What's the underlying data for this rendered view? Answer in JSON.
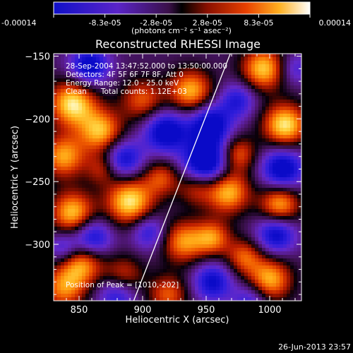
{
  "colorbar": {
    "ticks": [
      "-0.00014",
      "-8.3e-05",
      "-2.8e-05",
      "2.8e-05",
      "8.3e-05",
      "0.00014"
    ],
    "units": "(photons cm⁻² s⁻¹ asec⁻²)"
  },
  "chart_data": {
    "type": "heatmap",
    "title": "Reconstructed RHESSI Image",
    "xlabel": "Heliocentric X (arcsec)",
    "ylabel": "Heliocentric Y (arcsec)",
    "xlim": [
      830,
      1025
    ],
    "ylim": [
      -345,
      -148
    ],
    "xticks": [
      "850",
      "900",
      "950",
      "1000"
    ],
    "yticks": [
      "-150",
      "-200",
      "-250",
      "-300"
    ],
    "colormap_range": [
      -0.00014,
      0.00014
    ],
    "limb_line": {
      "x": [
        893,
        969
      ],
      "y": [
        -345,
        -148
      ]
    },
    "blobs": [
      {
        "x": 845,
        "y": -188,
        "v": 1.0,
        "r": 13
      },
      {
        "x": 867,
        "y": -210,
        "v": 0.85,
        "r": 12
      },
      {
        "x": 838,
        "y": -230,
        "v": 0.8,
        "r": 12
      },
      {
        "x": 845,
        "y": -275,
        "v": 0.9,
        "r": 12
      },
      {
        "x": 900,
        "y": -185,
        "v": 0.6,
        "r": 12
      },
      {
        "x": 938,
        "y": -178,
        "v": 0.85,
        "r": 12
      },
      {
        "x": 995,
        "y": -160,
        "v": 0.9,
        "r": 12
      },
      {
        "x": 1012,
        "y": -205,
        "v": 1.0,
        "r": 12
      },
      {
        "x": 975,
        "y": -228,
        "v": 0.65,
        "r": 10
      },
      {
        "x": 890,
        "y": -266,
        "v": 1.0,
        "r": 13
      },
      {
        "x": 915,
        "y": -247,
        "v": 0.55,
        "r": 10
      },
      {
        "x": 942,
        "y": -255,
        "v": 0.5,
        "r": 10
      },
      {
        "x": 967,
        "y": -258,
        "v": 0.9,
        "r": 12
      },
      {
        "x": 1008,
        "y": -268,
        "v": 0.85,
        "r": 11
      },
      {
        "x": 932,
        "y": -298,
        "v": 0.75,
        "r": 12
      },
      {
        "x": 955,
        "y": -295,
        "v": 0.7,
        "r": 10
      },
      {
        "x": 852,
        "y": -315,
        "v": 0.8,
        "r": 12
      },
      {
        "x": 838,
        "y": -335,
        "v": 0.7,
        "r": 12
      },
      {
        "x": 885,
        "y": -325,
        "v": 0.55,
        "r": 11
      },
      {
        "x": 1000,
        "y": -328,
        "v": 0.85,
        "r": 12
      },
      {
        "x": 980,
        "y": -310,
        "v": 0.6,
        "r": 10
      },
      {
        "x": 920,
        "y": -340,
        "v": 0.6,
        "r": 11
      },
      {
        "x": 868,
        "y": -240,
        "v": 0.45,
        "r": 9
      },
      {
        "x": 858,
        "y": -158,
        "v": -0.8,
        "r": 11
      },
      {
        "x": 918,
        "y": -210,
        "v": -0.85,
        "r": 12
      },
      {
        "x": 953,
        "y": -205,
        "v": -0.85,
        "r": 12
      },
      {
        "x": 950,
        "y": -235,
        "v": -1.0,
        "r": 13
      },
      {
        "x": 885,
        "y": -232,
        "v": -0.7,
        "r": 11
      },
      {
        "x": 860,
        "y": -295,
        "v": -0.75,
        "r": 11
      },
      {
        "x": 1010,
        "y": -240,
        "v": -0.85,
        "r": 12
      },
      {
        "x": 1005,
        "y": -292,
        "v": -0.75,
        "r": 11
      },
      {
        "x": 975,
        "y": -185,
        "v": -0.55,
        "r": 10
      },
      {
        "x": 880,
        "y": -340,
        "v": -0.6,
        "r": 11
      },
      {
        "x": 955,
        "y": -330,
        "v": -0.7,
        "r": 11
      },
      {
        "x": 838,
        "y": -303,
        "v": -0.5,
        "r": 9
      },
      {
        "x": 905,
        "y": -290,
        "v": -0.55,
        "r": 10
      },
      {
        "x": 985,
        "y": -345,
        "v": -0.5,
        "r": 10
      },
      {
        "x": 1020,
        "y": -160,
        "v": -0.4,
        "r": 9
      }
    ]
  },
  "annotations": [
    "28-Sep-2004 13:47:52.000 to 13:50:00.000",
    "Detectors: 4F 5F 6F 7F 8F, Att 0",
    "Energy Range: 12.0 - 25.0 keV",
    "Clean      Total counts: 1.12E+03"
  ],
  "peak_text": "Position of Peak = [1010,-202]",
  "footer_date": "26-Jun-2013 23:57"
}
